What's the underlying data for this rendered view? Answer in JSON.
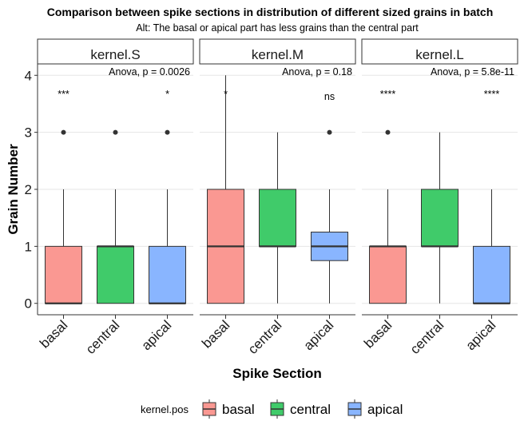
{
  "title": "Comparison between spike sections in distribution of different sized grains in batch",
  "subtitle": "Alt: The basal or apical part has less grains than the central part",
  "chart_data": {
    "type": "boxplot",
    "xlabel": "Spike Section",
    "ylabel": "Grain Number",
    "categories": [
      "basal",
      "central",
      "apical"
    ],
    "ylim": [
      -0.2,
      4.2
    ],
    "yticks": [
      0,
      1,
      2,
      3,
      4
    ],
    "grid": "horizontal",
    "legend": {
      "title": "kernel.pos",
      "placement": "bottom",
      "entries": [
        "basal",
        "central",
        "apical"
      ]
    },
    "colors": {
      "basal": "#F8766D",
      "central": "#00BA38",
      "apical": "#619CFF"
    },
    "facets": [
      {
        "label": "kernel.S",
        "anova": "Anova, p = 0.0026",
        "boxes": [
          {
            "group": "basal",
            "min": 0,
            "q1": 0,
            "median": 0,
            "q3": 1,
            "max": 2,
            "outliers": [
              3
            ],
            "sig": "***"
          },
          {
            "group": "central",
            "min": 0,
            "q1": 0,
            "median": 1,
            "q3": 1,
            "max": 2,
            "outliers": [
              3
            ],
            "sig": ""
          },
          {
            "group": "apical",
            "min": 0,
            "q1": 0,
            "median": 0,
            "q3": 1,
            "max": 2,
            "outliers": [
              3
            ],
            "sig": "*"
          }
        ]
      },
      {
        "label": "kernel.M",
        "anova": "Anova, p = 0.18",
        "boxes": [
          {
            "group": "basal",
            "min": 0,
            "q1": 0,
            "median": 1,
            "q3": 2,
            "max": 4,
            "outliers": [],
            "sig": "*"
          },
          {
            "group": "central",
            "min": 0,
            "q1": 1,
            "median": 1,
            "q3": 2,
            "max": 3,
            "outliers": [],
            "sig": ""
          },
          {
            "group": "apical",
            "min": 0,
            "q1": 0.75,
            "median": 1,
            "q3": 1.25,
            "max": 2,
            "outliers": [
              3
            ],
            "sig": "ns"
          }
        ]
      },
      {
        "label": "kernel.L",
        "anova": "Anova, p = 5.8e-11",
        "boxes": [
          {
            "group": "basal",
            "min": 0,
            "q1": 0,
            "median": 1,
            "q3": 1,
            "max": 2,
            "outliers": [
              3
            ],
            "sig": "****"
          },
          {
            "group": "central",
            "min": 0,
            "q1": 1,
            "median": 1,
            "q3": 2,
            "max": 3,
            "outliers": [],
            "sig": ""
          },
          {
            "group": "apical",
            "min": 0,
            "q1": 0,
            "median": 0,
            "q3": 1,
            "max": 2,
            "outliers": [],
            "sig": "****"
          }
        ]
      }
    ]
  }
}
